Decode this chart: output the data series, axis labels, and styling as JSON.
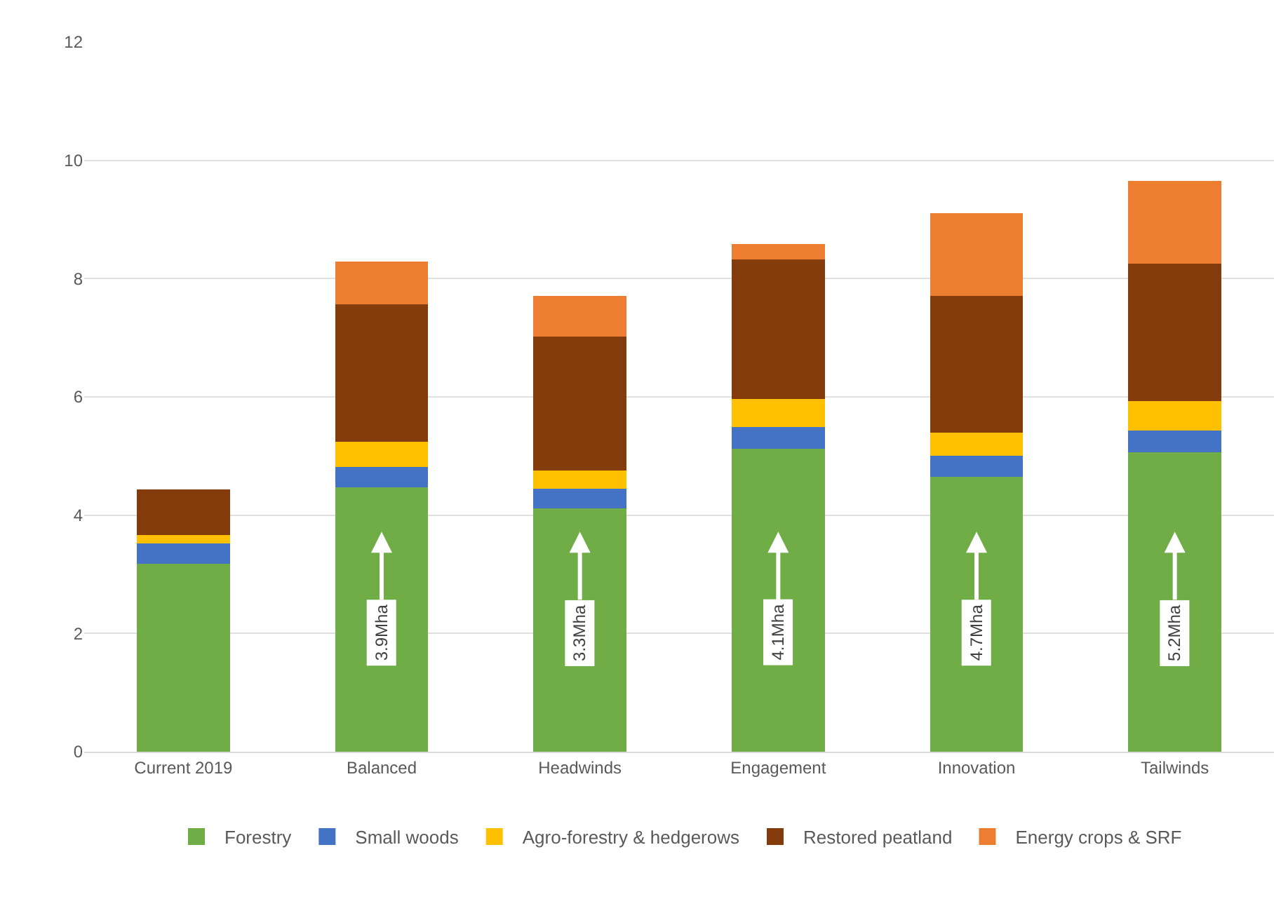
{
  "chart_data": {
    "type": "bar",
    "stacked": true,
    "categories": [
      "Current 2019",
      "Balanced",
      "Headwinds",
      "Engagement",
      "Innovation",
      "Tailwinds"
    ],
    "series": [
      {
        "name": "Forestry",
        "color": "#70ad47",
        "values": [
          3.18,
          4.47,
          4.11,
          5.12,
          4.65,
          5.06
        ]
      },
      {
        "name": "Small woods",
        "color": "#4472c4",
        "values": [
          0.34,
          0.34,
          0.34,
          0.37,
          0.35,
          0.37
        ]
      },
      {
        "name": "Agro-forestry & hedgerows",
        "color": "#ffc000",
        "values": [
          0.15,
          0.43,
          0.31,
          0.48,
          0.39,
          0.5
        ]
      },
      {
        "name": "Restored peatland",
        "color": "#843c0c",
        "values": [
          0.76,
          2.32,
          2.26,
          2.35,
          2.32,
          2.32
        ]
      },
      {
        "name": "Energy crops & SRF",
        "color": "#ed7d31",
        "values": [
          0,
          0.73,
          0.69,
          0.26,
          1.4,
          1.4
        ]
      }
    ],
    "ylim": [
      0,
      12
    ],
    "yticks": [
      0,
      2,
      4,
      6,
      8,
      10,
      12
    ],
    "grid": "y",
    "legend": "bottom",
    "annotations": [
      "3.9Mha",
      "3.3Mha",
      "4.1Mha",
      "4.7Mha",
      "5.2Mha"
    ]
  }
}
